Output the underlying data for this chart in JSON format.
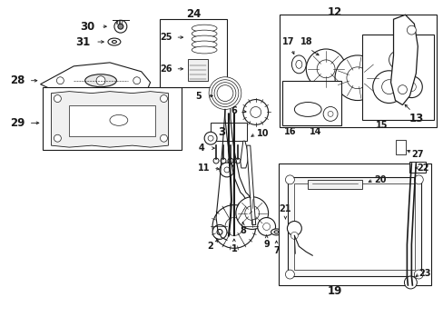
{
  "bg_color": "#ffffff",
  "line_color": "#1a1a1a",
  "figsize": [
    4.89,
    3.6
  ],
  "dpi": 100,
  "label_fs": 8.5,
  "small_fs": 7.0
}
